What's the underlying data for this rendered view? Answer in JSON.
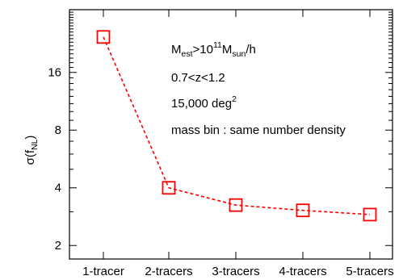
{
  "chart_data": {
    "type": "line",
    "categories": [
      "1-tracer",
      "2-tracers",
      "3-tracers",
      "4-tracers",
      "5-tracers"
    ],
    "series": [
      {
        "values": [
          24.5,
          4.0,
          3.25,
          3.05,
          2.9
        ],
        "color": "#ff0000",
        "line_style": "dashed",
        "marker": "open-square"
      }
    ],
    "yscale": "log2",
    "ylim": [
      1.7,
      34
    ],
    "yticks": [
      2,
      4,
      8,
      16
    ],
    "ylabel": {
      "base": "σ(f",
      "sub": "NL",
      "close": ")"
    },
    "xlabel": "",
    "title": "",
    "grid": false,
    "annotations": {
      "line1": {
        "a": "M",
        "a_sub": "est",
        "b": ">10",
        "b_sup": "11",
        "c": "M",
        "c_sub": "sun",
        "d": "/h"
      },
      "line2": "0.7<z<1.2",
      "line3": {
        "text": "15,000 deg",
        "sup": "2"
      },
      "line4": "mass bin : same number density"
    }
  }
}
